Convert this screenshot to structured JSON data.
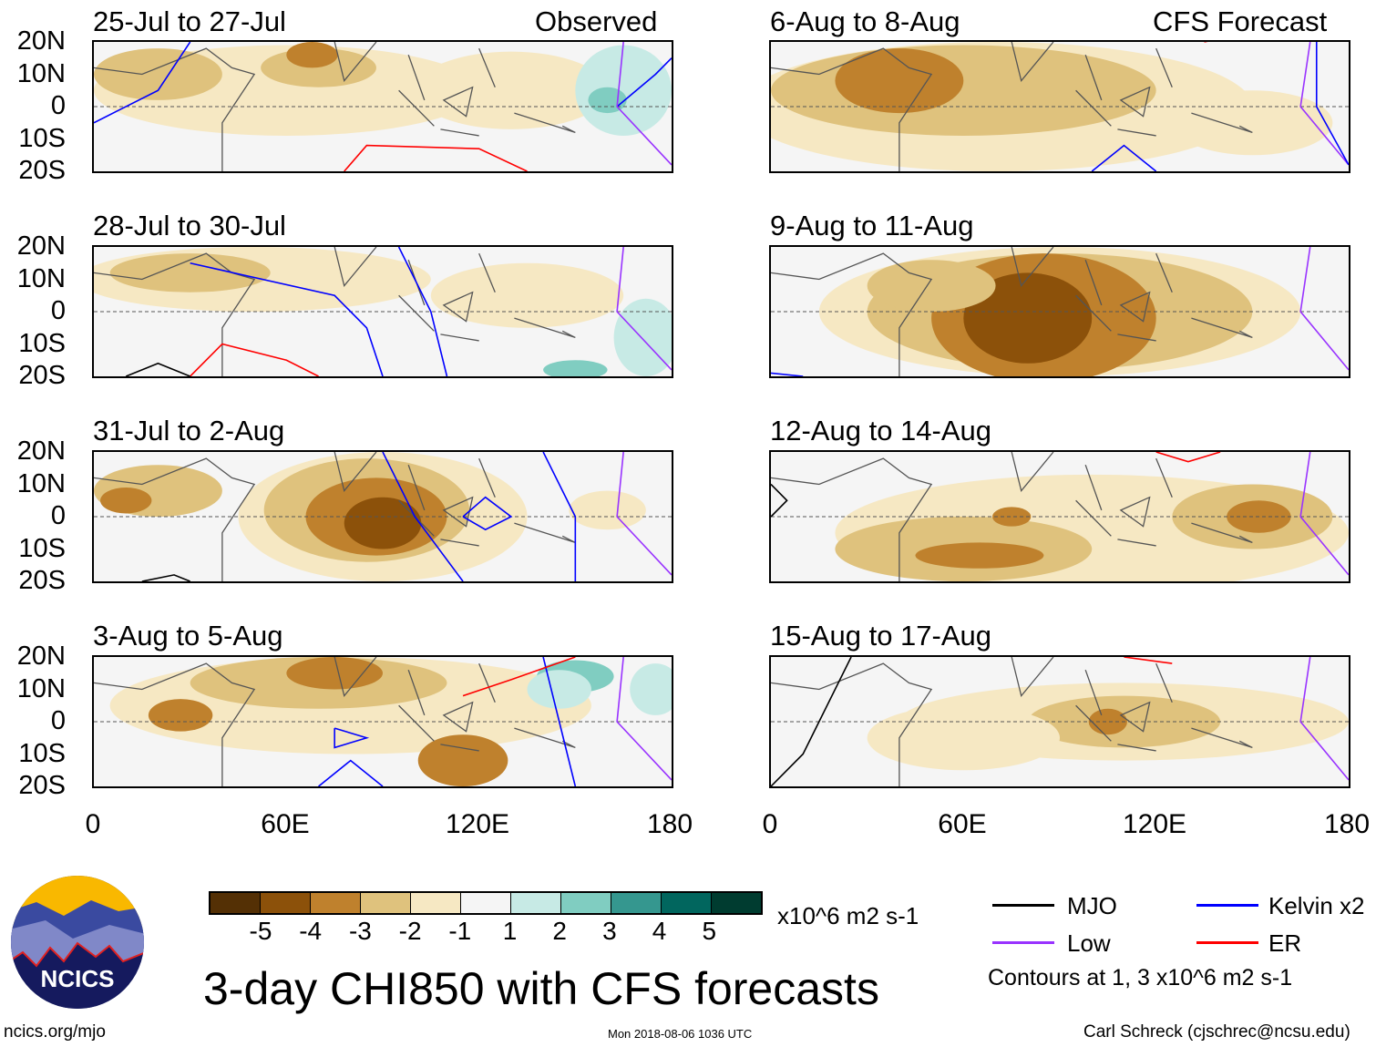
{
  "headers": {
    "left": "Observed",
    "right": "CFS Forecast"
  },
  "panels": {
    "left": [
      "25-Jul to 27-Jul",
      "28-Jul to 30-Jul",
      "31-Jul to 2-Aug",
      "3-Aug to 5-Aug"
    ],
    "right": [
      "6-Aug to 8-Aug",
      "9-Aug to 11-Aug",
      "12-Aug to 14-Aug",
      "15-Aug to 17-Aug"
    ]
  },
  "lat_labels": [
    "20N",
    "10N",
    "0",
    "10S",
    "20S"
  ],
  "lon_labels": [
    "0",
    "60E",
    "120E",
    "180"
  ],
  "colorbar": {
    "levels": [
      "-5",
      "-4",
      "-3",
      "-2",
      "-1",
      "1",
      "2",
      "3",
      "4",
      "5"
    ],
    "colors": [
      "#543005",
      "#8c510a",
      "#bf812d",
      "#dfc27d",
      "#f6e8c3",
      "#f5f5f5",
      "#c7eae5",
      "#80cdc1",
      "#35978f",
      "#01665e",
      "#003c30"
    ],
    "units": "x10^6 m2 s-1"
  },
  "legend": {
    "items": [
      {
        "label": "MJO",
        "color": "#000000"
      },
      {
        "label": "Kelvin x2",
        "color": "#0000ff"
      },
      {
        "label": "Low",
        "color": "#9933ff"
      },
      {
        "label": "ER",
        "color": "#ff0000"
      }
    ],
    "note": "Contours at 1, 3 x10^6 m2 s-1"
  },
  "title": "3-day CHI850 with CFS forecasts",
  "logo": {
    "text": "NCICS"
  },
  "footer": {
    "url": "ncics.org/mjo",
    "timestamp": "Mon 2018-08-06 1036 UTC",
    "credit": "Carl Schreck (cjschrec@ncsu.edu)"
  }
}
